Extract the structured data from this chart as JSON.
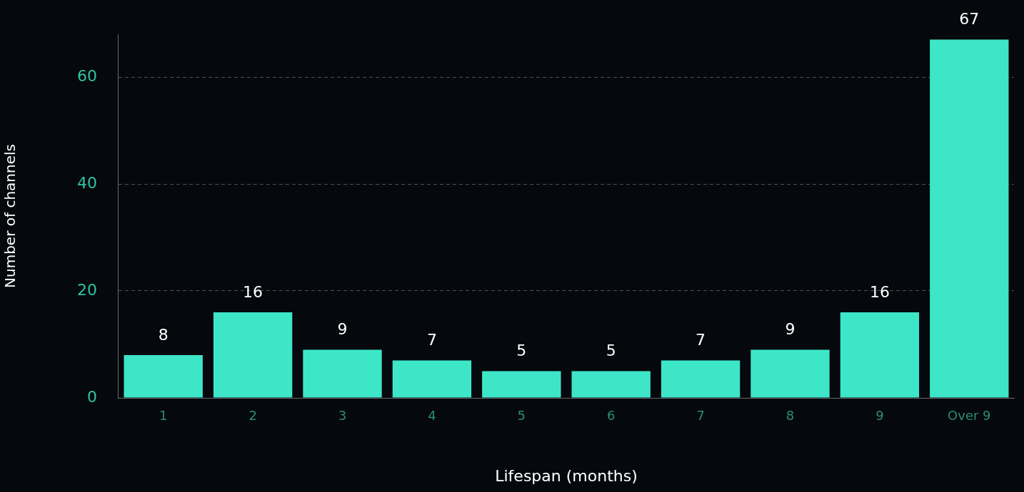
{
  "chart_data": {
    "type": "bar",
    "categories": [
      "1",
      "2",
      "3",
      "4",
      "5",
      "6",
      "7",
      "8",
      "9",
      "Over 9"
    ],
    "values": [
      8,
      16,
      9,
      7,
      5,
      5,
      7,
      9,
      16,
      67
    ],
    "color": "#3ee6c8",
    "ylim": [
      0,
      68
    ],
    "yticks": [
      0,
      20,
      40,
      60
    ],
    "grid": "y",
    "data_labels": true,
    "xlabel": "Lifespan (months)",
    "ylabel": "Number of channels"
  }
}
